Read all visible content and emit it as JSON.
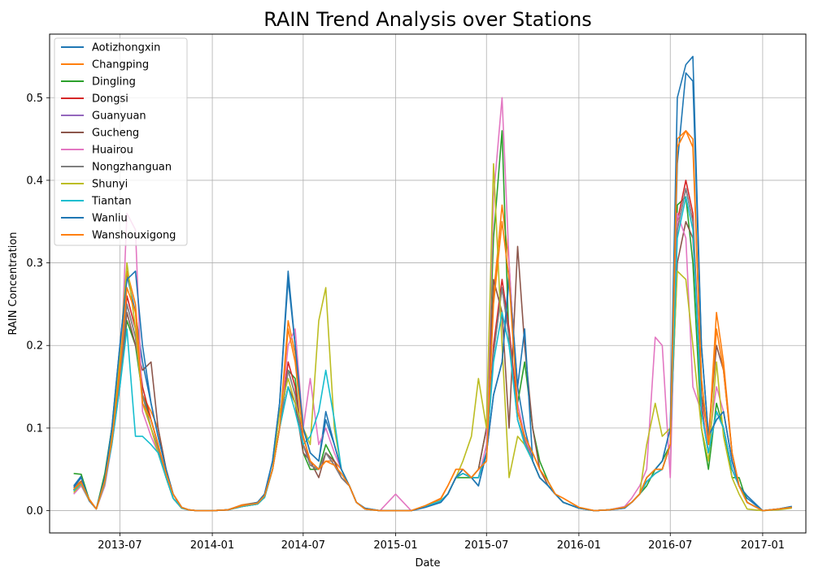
{
  "chart_data": {
    "type": "line",
    "title": "RAIN Trend Analysis over Stations",
    "xlabel": "Date",
    "ylabel": "RAIN Concentration",
    "xlim": [
      "2013-02-11",
      "2017-03-28"
    ],
    "ylim": [
      -0.027,
      0.577
    ],
    "x_ticks": [
      "2013-07-01",
      "2014-01-01",
      "2014-07-01",
      "2015-01-01",
      "2015-07-01",
      "2016-01-01",
      "2016-07-01",
      "2017-01-01"
    ],
    "x_tick_labels": [
      "2013-07",
      "2014-01",
      "2014-07",
      "2015-01",
      "2015-07",
      "2016-01",
      "2016-07",
      "2017-01"
    ],
    "y_ticks": [
      0.0,
      0.1,
      0.2,
      0.3,
      0.4,
      0.5
    ],
    "y_tick_labels": [
      "0.0",
      "0.1",
      "0.2",
      "0.3",
      "0.4",
      "0.5"
    ],
    "grid": true,
    "legend_position": "top-left",
    "x": [
      "2013-03-31",
      "2013-04-15",
      "2013-05-01",
      "2013-05-15",
      "2013-06-01",
      "2013-06-15",
      "2013-07-01",
      "2013-07-15",
      "2013-08-01",
      "2013-08-15",
      "2013-09-01",
      "2013-09-15",
      "2013-10-01",
      "2013-10-15",
      "2013-11-01",
      "2013-11-15",
      "2013-12-01",
      "2014-01-01",
      "2014-02-01",
      "2014-03-01",
      "2014-04-01",
      "2014-04-15",
      "2014-05-01",
      "2014-05-15",
      "2014-06-01",
      "2014-06-15",
      "2014-07-01",
      "2014-07-15",
      "2014-08-01",
      "2014-08-15",
      "2014-09-01",
      "2014-09-15",
      "2014-10-01",
      "2014-10-15",
      "2014-11-01",
      "2014-12-01",
      "2015-01-01",
      "2015-02-01",
      "2015-03-01",
      "2015-04-01",
      "2015-04-15",
      "2015-05-01",
      "2015-05-15",
      "2015-06-01",
      "2015-06-15",
      "2015-07-01",
      "2015-07-15",
      "2015-08-01",
      "2015-08-15",
      "2015-09-01",
      "2015-09-15",
      "2015-10-01",
      "2015-10-15",
      "2015-11-01",
      "2015-11-15",
      "2015-12-01",
      "2016-01-01",
      "2016-02-01",
      "2016-03-01",
      "2016-04-01",
      "2016-04-15",
      "2016-05-01",
      "2016-05-15",
      "2016-06-01",
      "2016-06-15",
      "2016-07-01",
      "2016-07-15",
      "2016-08-01",
      "2016-08-15",
      "2016-09-01",
      "2016-09-15",
      "2016-10-01",
      "2016-10-15",
      "2016-11-01",
      "2016-11-15",
      "2016-12-01",
      "2017-01-01",
      "2017-02-01",
      "2017-02-28"
    ],
    "series": [
      {
        "name": "Aotizhongxin",
        "color": "#1f77b4",
        "values": [
          0.03,
          0.042,
          0.012,
          0.002,
          0.04,
          0.1,
          0.2,
          0.285,
          0.24,
          0.18,
          0.13,
          0.09,
          0.05,
          0.02,
          0.004,
          0.001,
          0.0,
          0.0,
          0.001,
          0.006,
          0.01,
          0.02,
          0.06,
          0.13,
          0.29,
          0.2,
          0.1,
          0.07,
          0.06,
          0.12,
          0.08,
          0.05,
          0.03,
          0.01,
          0.003,
          0.0,
          0.0,
          0.0,
          0.004,
          0.01,
          0.02,
          0.04,
          0.05,
          0.04,
          0.03,
          0.07,
          0.14,
          0.18,
          0.29,
          0.15,
          0.1,
          0.06,
          0.04,
          0.03,
          0.02,
          0.01,
          0.003,
          0.0,
          0.001,
          0.003,
          0.01,
          0.02,
          0.04,
          0.05,
          0.06,
          0.1,
          0.42,
          0.53,
          0.52,
          0.2,
          0.09,
          0.11,
          0.12,
          0.06,
          0.03,
          0.015,
          0.0,
          0.002,
          0.005
        ]
      },
      {
        "name": "Changping",
        "color": "#ff7f0e",
        "values": [
          0.028,
          0.036,
          0.014,
          0.002,
          0.042,
          0.09,
          0.18,
          0.29,
          0.25,
          0.14,
          0.12,
          0.1,
          0.05,
          0.02,
          0.004,
          0.001,
          0.0,
          0.0,
          0.001,
          0.007,
          0.01,
          0.02,
          0.05,
          0.1,
          0.23,
          0.19,
          0.09,
          0.06,
          0.05,
          0.06,
          0.06,
          0.05,
          0.03,
          0.01,
          0.002,
          0.0,
          0.0,
          0.0,
          0.006,
          0.015,
          0.03,
          0.05,
          0.05,
          0.04,
          0.05,
          0.06,
          0.26,
          0.37,
          0.3,
          0.12,
          0.09,
          0.07,
          0.05,
          0.035,
          0.02,
          0.015,
          0.004,
          0.0,
          0.001,
          0.004,
          0.01,
          0.02,
          0.04,
          0.05,
          0.05,
          0.08,
          0.45,
          0.46,
          0.45,
          0.16,
          0.08,
          0.24,
          0.18,
          0.07,
          0.03,
          0.01,
          0.0,
          0.002,
          0.004
        ]
      },
      {
        "name": "Dingling",
        "color": "#2ca02c",
        "values": [
          0.045,
          0.044,
          0.013,
          0.002,
          0.045,
          0.1,
          0.16,
          0.23,
          0.2,
          0.14,
          0.11,
          0.08,
          0.04,
          0.015,
          0.003,
          0.001,
          0.0,
          0.0,
          0.001,
          0.005,
          0.008,
          0.016,
          0.05,
          0.1,
          0.17,
          0.16,
          0.07,
          0.05,
          0.05,
          0.08,
          0.06,
          0.04,
          0.03,
          0.01,
          0.002,
          0.0,
          0.0,
          0.0,
          0.005,
          0.012,
          0.02,
          0.04,
          0.04,
          0.04,
          0.05,
          0.1,
          0.33,
          0.46,
          0.2,
          0.13,
          0.18,
          0.1,
          0.06,
          0.035,
          0.02,
          0.01,
          0.003,
          0.0,
          0.001,
          0.004,
          0.01,
          0.02,
          0.03,
          0.05,
          0.06,
          0.08,
          0.37,
          0.38,
          0.3,
          0.1,
          0.05,
          0.13,
          0.1,
          0.04,
          0.04,
          0.01,
          0.0,
          0.002,
          0.004
        ]
      },
      {
        "name": "Dongsi",
        "color": "#d62728",
        "values": [
          0.025,
          0.034,
          0.012,
          0.002,
          0.035,
          0.085,
          0.17,
          0.26,
          0.22,
          0.15,
          0.11,
          0.08,
          0.04,
          0.015,
          0.003,
          0.001,
          0.0,
          0.0,
          0.001,
          0.005,
          0.008,
          0.016,
          0.05,
          0.1,
          0.18,
          0.15,
          0.08,
          0.06,
          0.05,
          0.07,
          0.06,
          0.04,
          0.03,
          0.01,
          0.002,
          0.0,
          0.0,
          0.0,
          0.005,
          0.012,
          0.02,
          0.04,
          0.045,
          0.04,
          0.04,
          0.07,
          0.2,
          0.28,
          0.22,
          0.12,
          0.09,
          0.06,
          0.04,
          0.03,
          0.02,
          0.01,
          0.003,
          0.0,
          0.001,
          0.004,
          0.01,
          0.02,
          0.035,
          0.045,
          0.05,
          0.08,
          0.35,
          0.4,
          0.36,
          0.13,
          0.07,
          0.12,
          0.1,
          0.05,
          0.03,
          0.01,
          0.0,
          0.002,
          0.004
        ]
      },
      {
        "name": "Guanyuan",
        "color": "#9467bd",
        "values": [
          0.024,
          0.033,
          0.012,
          0.002,
          0.034,
          0.082,
          0.16,
          0.25,
          0.21,
          0.14,
          0.1,
          0.075,
          0.04,
          0.015,
          0.003,
          0.001,
          0.0,
          0.0,
          0.001,
          0.005,
          0.008,
          0.016,
          0.05,
          0.1,
          0.17,
          0.14,
          0.08,
          0.055,
          0.05,
          0.07,
          0.055,
          0.04,
          0.03,
          0.01,
          0.002,
          0.0,
          0.0,
          0.0,
          0.005,
          0.012,
          0.02,
          0.04,
          0.045,
          0.04,
          0.04,
          0.07,
          0.19,
          0.27,
          0.21,
          0.11,
          0.085,
          0.06,
          0.04,
          0.03,
          0.02,
          0.01,
          0.003,
          0.0,
          0.001,
          0.004,
          0.01,
          0.02,
          0.035,
          0.045,
          0.05,
          0.08,
          0.34,
          0.39,
          0.35,
          0.12,
          0.07,
          0.12,
          0.1,
          0.05,
          0.03,
          0.01,
          0.0,
          0.002,
          0.004
        ]
      },
      {
        "name": "Gucheng",
        "color": "#8c564b",
        "values": [
          0.025,
          0.035,
          0.013,
          0.002,
          0.036,
          0.085,
          0.15,
          0.24,
          0.2,
          0.17,
          0.18,
          0.1,
          0.05,
          0.02,
          0.003,
          0.001,
          0.0,
          0.0,
          0.001,
          0.006,
          0.008,
          0.016,
          0.05,
          0.1,
          0.15,
          0.13,
          0.07,
          0.06,
          0.04,
          0.07,
          0.06,
          0.04,
          0.03,
          0.01,
          0.002,
          0.0,
          0.0,
          0.0,
          0.005,
          0.012,
          0.02,
          0.04,
          0.045,
          0.04,
          0.05,
          0.1,
          0.28,
          0.24,
          0.1,
          0.32,
          0.2,
          0.1,
          0.05,
          0.03,
          0.02,
          0.01,
          0.003,
          0.0,
          0.001,
          0.004,
          0.01,
          0.02,
          0.035,
          0.045,
          0.05,
          0.08,
          0.3,
          0.35,
          0.33,
          0.14,
          0.09,
          0.2,
          0.17,
          0.07,
          0.03,
          0.01,
          0.0,
          0.002,
          0.004
        ]
      },
      {
        "name": "Huairou",
        "color": "#e377c2",
        "values": [
          0.02,
          0.03,
          0.012,
          0.002,
          0.03,
          0.08,
          0.15,
          0.36,
          0.34,
          0.12,
          0.09,
          0.07,
          0.04,
          0.015,
          0.003,
          0.001,
          0.0,
          0.0,
          0.001,
          0.005,
          0.008,
          0.016,
          0.05,
          0.1,
          0.2,
          0.22,
          0.1,
          0.16,
          0.08,
          0.1,
          0.07,
          0.05,
          0.03,
          0.01,
          0.002,
          0.0,
          0.02,
          0.0,
          0.005,
          0.012,
          0.02,
          0.04,
          0.05,
          0.04,
          0.04,
          0.08,
          0.38,
          0.5,
          0.3,
          0.13,
          0.09,
          0.06,
          0.04,
          0.03,
          0.02,
          0.01,
          0.003,
          0.0,
          0.001,
          0.005,
          0.015,
          0.03,
          0.05,
          0.21,
          0.2,
          0.04,
          0.36,
          0.33,
          0.15,
          0.12,
          0.08,
          0.15,
          0.12,
          0.06,
          0.03,
          0.01,
          0.0,
          0.002,
          0.004
        ]
      },
      {
        "name": "Nongzhanguan",
        "color": "#7f7f7f",
        "values": [
          0.025,
          0.034,
          0.012,
          0.002,
          0.035,
          0.085,
          0.16,
          0.25,
          0.21,
          0.14,
          0.1,
          0.075,
          0.04,
          0.015,
          0.003,
          0.001,
          0.0,
          0.0,
          0.001,
          0.005,
          0.008,
          0.016,
          0.05,
          0.1,
          0.17,
          0.14,
          0.08,
          0.055,
          0.05,
          0.07,
          0.055,
          0.04,
          0.03,
          0.01,
          0.002,
          0.0,
          0.0,
          0.0,
          0.005,
          0.012,
          0.02,
          0.04,
          0.045,
          0.04,
          0.04,
          0.07,
          0.19,
          0.27,
          0.21,
          0.11,
          0.085,
          0.06,
          0.04,
          0.03,
          0.02,
          0.01,
          0.003,
          0.0,
          0.001,
          0.004,
          0.01,
          0.02,
          0.035,
          0.045,
          0.05,
          0.08,
          0.34,
          0.39,
          0.35,
          0.12,
          0.07,
          0.12,
          0.1,
          0.05,
          0.03,
          0.01,
          0.0,
          0.002,
          0.004
        ]
      },
      {
        "name": "Shunyi",
        "color": "#bcbd22",
        "values": [
          0.022,
          0.032,
          0.012,
          0.002,
          0.033,
          0.09,
          0.19,
          0.3,
          0.22,
          0.13,
          0.1,
          0.07,
          0.04,
          0.015,
          0.003,
          0.001,
          0.0,
          0.0,
          0.001,
          0.005,
          0.008,
          0.016,
          0.05,
          0.12,
          0.16,
          0.13,
          0.1,
          0.08,
          0.23,
          0.27,
          0.1,
          0.05,
          0.03,
          0.01,
          0.002,
          0.0,
          0.0,
          0.0,
          0.005,
          0.012,
          0.02,
          0.04,
          0.06,
          0.09,
          0.16,
          0.1,
          0.42,
          0.2,
          0.04,
          0.09,
          0.08,
          0.06,
          0.04,
          0.03,
          0.02,
          0.01,
          0.003,
          0.0,
          0.001,
          0.004,
          0.01,
          0.02,
          0.08,
          0.13,
          0.09,
          0.1,
          0.29,
          0.28,
          0.2,
          0.1,
          0.06,
          0.18,
          0.09,
          0.04,
          0.02,
          0.002,
          0.0,
          0.001,
          0.003
        ]
      },
      {
        "name": "Tiantan",
        "color": "#17becf",
        "values": [
          0.024,
          0.033,
          0.012,
          0.002,
          0.034,
          0.08,
          0.15,
          0.22,
          0.09,
          0.09,
          0.08,
          0.07,
          0.04,
          0.015,
          0.003,
          0.001,
          0.0,
          0.0,
          0.001,
          0.005,
          0.008,
          0.016,
          0.05,
          0.1,
          0.15,
          0.12,
          0.08,
          0.09,
          0.12,
          0.17,
          0.11,
          0.05,
          0.03,
          0.01,
          0.002,
          0.0,
          0.0,
          0.0,
          0.005,
          0.012,
          0.02,
          0.04,
          0.045,
          0.04,
          0.04,
          0.07,
          0.18,
          0.24,
          0.2,
          0.11,
          0.08,
          0.06,
          0.04,
          0.03,
          0.02,
          0.01,
          0.003,
          0.0,
          0.001,
          0.004,
          0.01,
          0.02,
          0.035,
          0.045,
          0.05,
          0.08,
          0.33,
          0.38,
          0.34,
          0.12,
          0.07,
          0.12,
          0.1,
          0.05,
          0.03,
          0.01,
          0.0,
          0.002,
          0.004
        ]
      },
      {
        "name": "Wanliu",
        "color": "#1f77b4",
        "values": [
          0.028,
          0.04,
          0.012,
          0.002,
          0.04,
          0.1,
          0.2,
          0.28,
          0.29,
          0.2,
          0.13,
          0.09,
          0.05,
          0.02,
          0.004,
          0.001,
          0.0,
          0.0,
          0.001,
          0.006,
          0.01,
          0.02,
          0.06,
          0.13,
          0.28,
          0.2,
          0.1,
          0.07,
          0.06,
          0.11,
          0.08,
          0.05,
          0.03,
          0.01,
          0.003,
          0.0,
          0.0,
          0.0,
          0.004,
          0.01,
          0.02,
          0.04,
          0.05,
          0.04,
          0.03,
          0.07,
          0.14,
          0.18,
          0.28,
          0.15,
          0.22,
          0.06,
          0.04,
          0.03,
          0.02,
          0.01,
          0.003,
          0.0,
          0.001,
          0.003,
          0.01,
          0.02,
          0.04,
          0.05,
          0.06,
          0.1,
          0.5,
          0.54,
          0.55,
          0.2,
          0.09,
          0.11,
          0.12,
          0.06,
          0.03,
          0.018,
          0.0,
          0.002,
          0.005
        ]
      },
      {
        "name": "Wanshouxigong",
        "color": "#ff7f0e",
        "values": [
          0.026,
          0.034,
          0.013,
          0.002,
          0.036,
          0.085,
          0.17,
          0.27,
          0.24,
          0.13,
          0.11,
          0.08,
          0.045,
          0.02,
          0.004,
          0.001,
          0.0,
          0.0,
          0.001,
          0.006,
          0.009,
          0.018,
          0.05,
          0.1,
          0.22,
          0.18,
          0.09,
          0.06,
          0.05,
          0.06,
          0.055,
          0.045,
          0.03,
          0.01,
          0.002,
          0.0,
          0.0,
          0.0,
          0.006,
          0.014,
          0.03,
          0.05,
          0.05,
          0.04,
          0.05,
          0.06,
          0.25,
          0.35,
          0.28,
          0.12,
          0.09,
          0.07,
          0.05,
          0.035,
          0.02,
          0.015,
          0.004,
          0.0,
          0.001,
          0.004,
          0.01,
          0.02,
          0.04,
          0.05,
          0.05,
          0.08,
          0.44,
          0.46,
          0.44,
          0.16,
          0.08,
          0.22,
          0.17,
          0.07,
          0.03,
          0.01,
          0.0,
          0.002,
          0.004
        ]
      }
    ]
  }
}
